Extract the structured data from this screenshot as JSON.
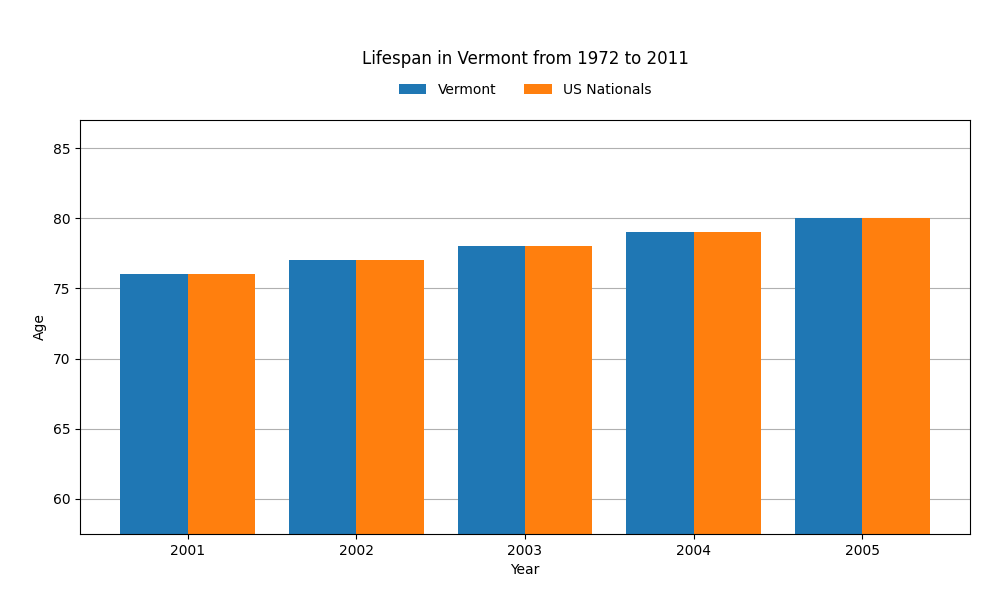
{
  "chart_data": {
    "type": "bar",
    "title": "Lifespan in Vermont from 1972 to 2011",
    "x_label": "Year",
    "y_label": "Age",
    "categories": [
      "2001",
      "2002",
      "2003",
      "2004",
      "2005"
    ],
    "series": [
      {
        "name": "Vermont",
        "values": [
          76,
          77,
          78,
          79,
          80
        ]
      },
      {
        "name": "US Nationals",
        "values": [
          76,
          77,
          78,
          79,
          80
        ]
      }
    ],
    "ylim": [
      57.5,
      87
    ],
    "yticks": [
      60,
      65,
      70,
      75,
      80,
      85
    ],
    "grid": true,
    "legend": "upper center"
  }
}
